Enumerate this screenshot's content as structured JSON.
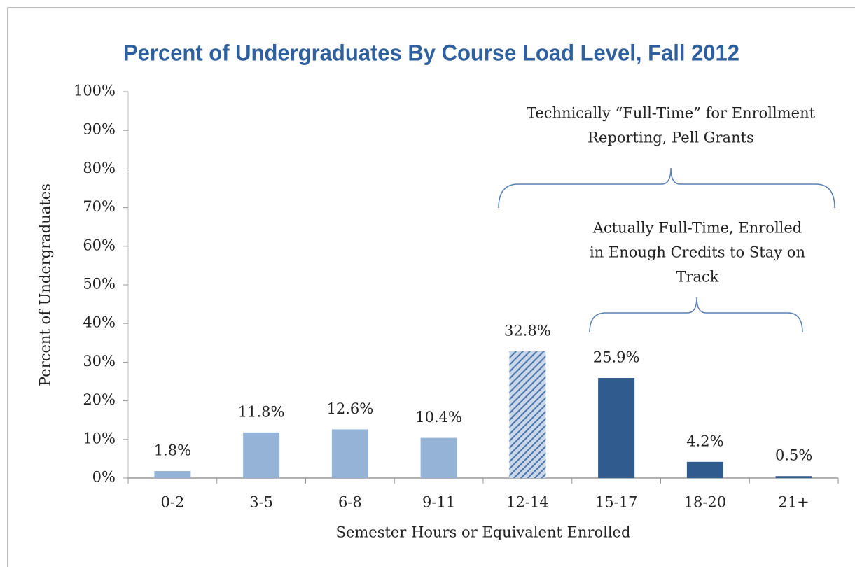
{
  "chart_data": {
    "type": "bar",
    "title": "Percent of Undergraduates By Course Load Level, Fall 2012",
    "x_label": "Semester Hours or Equivalent Enrolled",
    "y_label": "Percent of Undergraduates",
    "categories": [
      "0-2",
      "3-5",
      "6-8",
      "9-11",
      "12-14",
      "15-17",
      "18-20",
      "21+"
    ],
    "values": [
      1.8,
      11.8,
      12.6,
      10.4,
      32.8,
      25.9,
      4.2,
      0.5
    ],
    "value_labels": [
      "1.8%",
      "11.8%",
      "12.6%",
      "10.4%",
      "32.8%",
      "25.9%",
      "4.2%",
      "0.5%"
    ],
    "colors": [
      "#95b3d7",
      "#95b3d7",
      "#95b3d7",
      "#95b3d7",
      "#4f74a8",
      "#2f5b8e",
      "#2f5b8e",
      "#2f5b8e"
    ],
    "hatched": [
      false,
      false,
      false,
      false,
      true,
      false,
      false,
      false
    ],
    "ylim": [
      0,
      100
    ],
    "yticks": [
      {
        "value": 0,
        "label": "0%"
      },
      {
        "value": 10,
        "label": "10%"
      },
      {
        "value": 20,
        "label": "20%"
      },
      {
        "value": 30,
        "label": "30%"
      },
      {
        "value": 40,
        "label": "40%"
      },
      {
        "value": 50,
        "label": "50%"
      },
      {
        "value": 60,
        "label": "60%"
      },
      {
        "value": 70,
        "label": "70%"
      },
      {
        "value": 80,
        "label": "80%"
      },
      {
        "value": 90,
        "label": "90%"
      },
      {
        "value": 100,
        "label": "100%"
      }
    ],
    "grid": false,
    "annotations": [
      {
        "lines": [
          "Technically “Full-Time” for Enrollment",
          "Reporting, Pell Grants"
        ]
      },
      {
        "lines": [
          "Actually Full-Time, Enrolled",
          "in Enough Credits to Stay on",
          "Track"
        ]
      }
    ]
  }
}
